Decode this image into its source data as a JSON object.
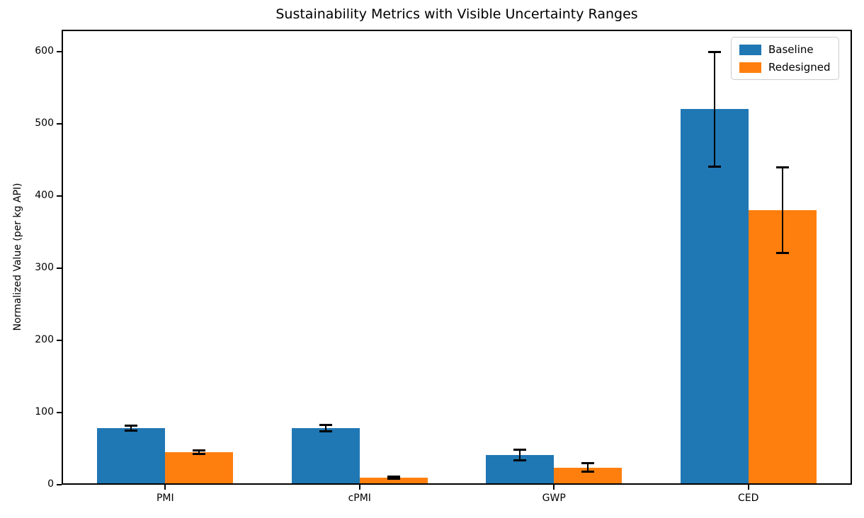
{
  "chart_data": {
    "type": "bar",
    "title": "Sustainability Metrics with Visible Uncertainty Ranges",
    "xlabel": "",
    "ylabel": "Normalized Value (per kg API)",
    "categories": [
      "PMI",
      "cPMI",
      "GWP",
      "CED"
    ],
    "series": [
      {
        "name": "Baseline",
        "color": "#1f77b4",
        "values": [
          78,
          78,
          41,
          520
        ],
        "errors": [
          4,
          5,
          8,
          80
        ]
      },
      {
        "name": "Redesigned",
        "color": "#ff7f0e",
        "values": [
          45,
          10,
          24,
          380
        ],
        "errors": [
          3,
          2,
          6,
          60
        ]
      }
    ],
    "error_bar_color": "#000000",
    "yticks": [
      0,
      100,
      200,
      300,
      400,
      500,
      600
    ],
    "ylim": [
      0,
      630
    ],
    "xlim": [
      -0.533,
      3.533
    ],
    "bar_width": 0.35,
    "grid": false,
    "legend_position": "upper right"
  }
}
